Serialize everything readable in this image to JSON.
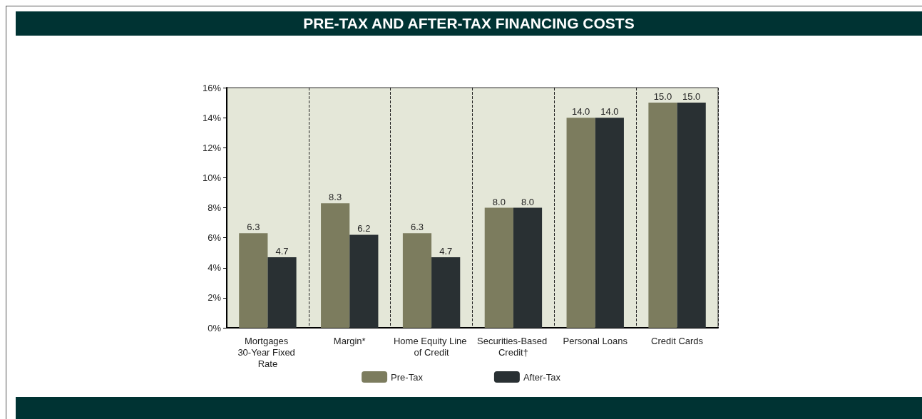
{
  "chart_data": {
    "type": "bar",
    "title": "PRE-TAX AND AFTER-TAX FINANCING COSTS",
    "categories": [
      "Mortgages 30-Year Fixed Rate",
      "Margin*",
      "Home Equity Line of Credit",
      "Securities-Based Credit†",
      "Personal Loans",
      "Credit Cards"
    ],
    "series": [
      {
        "name": "Pre-Tax",
        "color": "#7c7c5e",
        "values": [
          6.3,
          8.3,
          6.3,
          8.0,
          14.0,
          15.0
        ],
        "value_labels": [
          "6.3",
          "8.3",
          "6.3",
          "8.0",
          "14.0",
          "15.0"
        ]
      },
      {
        "name": "After-Tax",
        "color": "#293033",
        "values": [
          4.7,
          6.2,
          4.7,
          8.0,
          14.0,
          15.0
        ],
        "value_labels": [
          "4.7",
          "6.2",
          "4.7",
          "8.0",
          "14.0",
          "15.0"
        ]
      }
    ],
    "ylim": [
      0,
      16
    ],
    "yticks": [
      {
        "value": 0,
        "label": "0%"
      },
      {
        "value": 2,
        "label": "2%"
      },
      {
        "value": 4,
        "label": "4%"
      },
      {
        "value": 6,
        "label": "6%"
      },
      {
        "value": 8,
        "label": "8%"
      },
      {
        "value": 10,
        "label": "10%"
      },
      {
        "value": 12,
        "label": "12%"
      },
      {
        "value": 14,
        "label": "14%"
      },
      {
        "value": 16,
        "label": "16%"
      }
    ],
    "grid": "x",
    "legend": "bottom"
  }
}
